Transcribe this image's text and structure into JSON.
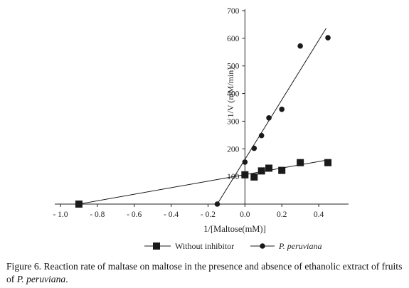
{
  "chart_data": {
    "type": "scatter",
    "xlabel": "1/[Maltose(mM)]",
    "ylabel": "1/V (mM/min)",
    "xlim": [
      -1.0,
      0.5
    ],
    "ylim": [
      0,
      700
    ],
    "x_ticks": [
      "- 1.0",
      "- 0.8",
      "- 0.6",
      "- 0.4",
      "- 0.2",
      "0.0",
      "0.2",
      "0.4"
    ],
    "y_ticks": [
      "100",
      "200",
      "300",
      "400",
      "500",
      "600",
      "700"
    ],
    "x_tick_values": [
      -1.0,
      -0.8,
      -0.6,
      -0.4,
      -0.2,
      0.0,
      0.2,
      0.4
    ],
    "y_tick_values": [
      100,
      200,
      300,
      400,
      500,
      600,
      700
    ],
    "grid": false,
    "legend_position": "bottom",
    "series": [
      {
        "name": "Without inhibitor",
        "marker": "square",
        "color": "#1a1a1a",
        "points": [
          {
            "x": -0.9,
            "y": 0
          },
          {
            "x": 0.0,
            "y": 106
          },
          {
            "x": 0.05,
            "y": 98
          },
          {
            "x": 0.09,
            "y": 120
          },
          {
            "x": 0.13,
            "y": 130
          },
          {
            "x": 0.2,
            "y": 122
          },
          {
            "x": 0.3,
            "y": 150
          },
          {
            "x": 0.45,
            "y": 150
          }
        ],
        "fit_line": {
          "x": [
            -0.9,
            0.45
          ],
          "y": [
            0,
            160
          ]
        }
      },
      {
        "name": "P. peruviana",
        "marker": "circle",
        "color": "#1a1a1a",
        "points": [
          {
            "x": -0.15,
            "y": 0
          },
          {
            "x": 0.0,
            "y": 152
          },
          {
            "x": 0.05,
            "y": 202
          },
          {
            "x": 0.09,
            "y": 248
          },
          {
            "x": 0.13,
            "y": 312
          },
          {
            "x": 0.2,
            "y": 343
          },
          {
            "x": 0.3,
            "y": 572
          },
          {
            "x": 0.45,
            "y": 602
          }
        ],
        "fit_line": {
          "x": [
            -0.15,
            0.44
          ],
          "y": [
            0,
            636
          ]
        }
      }
    ]
  },
  "caption": {
    "prefix": "Figure 6. Reaction rate of maltase on maltose in the presence and absence of ethanolic extract of fruits of ",
    "species": "P. peruviana",
    "suffix": "."
  }
}
